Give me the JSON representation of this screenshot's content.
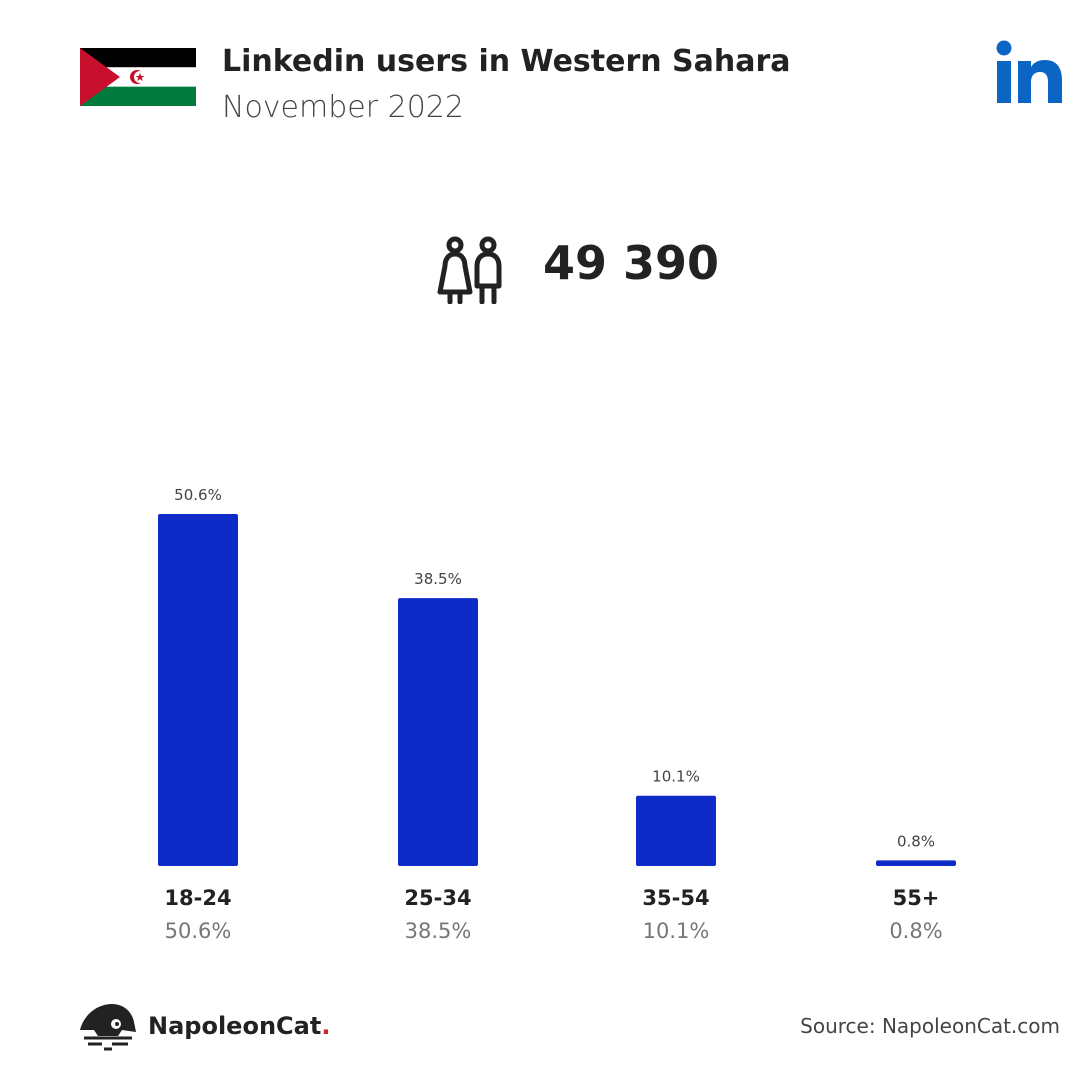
{
  "header": {
    "title": "Linkedin users in Western Sahara",
    "subtitle": "November 2022",
    "flag_icon": "western-sahara-flag-icon",
    "logo_icon": "linkedin-logo-icon",
    "logo_text": "in"
  },
  "summary": {
    "users_icon": "users-icon",
    "total": "49 390"
  },
  "colors": {
    "bar": "#0f2bc7",
    "linkedin": "#0a66c2",
    "flag_red": "#c8102e",
    "flag_green": "#007a3d",
    "brand_dot": "#d4202a"
  },
  "chart_data": {
    "type": "bar",
    "categories": [
      "18-24",
      "25-34",
      "35-54",
      "55+"
    ],
    "values": [
      50.6,
      38.5,
      10.1,
      0.8
    ],
    "value_labels": [
      "50.6%",
      "38.5%",
      "10.1%",
      "0.8%"
    ],
    "unit": "%",
    "ylim": [
      0,
      50.6
    ],
    "grid": false,
    "legend": "none"
  },
  "footer": {
    "brand_icon": "napoleoncat-logo-icon",
    "brand_name": "NapoleonCat",
    "brand_dot": ".",
    "source": "Source: NapoleonCat.com"
  }
}
